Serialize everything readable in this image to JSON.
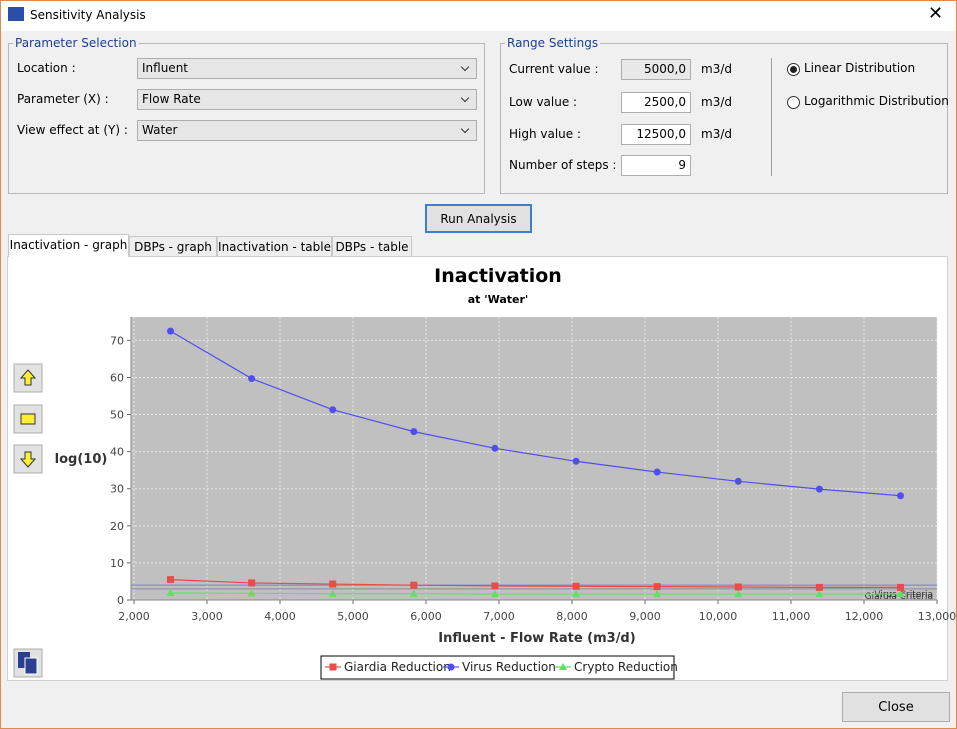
{
  "window": {
    "title": "Sensitivity Analysis"
  },
  "parameter_selection": {
    "title": "Parameter Selection",
    "fields": [
      {
        "label": "Location :",
        "value": "Influent"
      },
      {
        "label": "Parameter (X) :",
        "value": "Flow Rate"
      },
      {
        "label": "View effect at (Y) :",
        "value": "Water"
      }
    ]
  },
  "range_settings": {
    "title": "Range Settings",
    "fields": [
      {
        "label": "Current value :",
        "value": "5000,0",
        "unit": "m3/d",
        "enabled": false
      },
      {
        "label": "Low value :",
        "value": "2500,0",
        "unit": "m3/d",
        "enabled": true
      },
      {
        "label": "High value :",
        "value": "12500,0",
        "unit": "m3/d",
        "enabled": true
      },
      {
        "label": "Number of steps :",
        "value": "9",
        "enabled": true
      }
    ],
    "options": [
      {
        "label": "Linear Distribution",
        "selected": true
      },
      {
        "label": "Logarithmic Distribution",
        "selected": false
      }
    ]
  },
  "run_button": "Run Analysis",
  "tabs": [
    "Inactivation - graph",
    "DBPs - graph",
    "Inactivation - table",
    "DBPs - table"
  ],
  "active_tab": 0,
  "close_button": "Close",
  "chart_data": {
    "type": "line",
    "title": "Inactivation",
    "subtitle": "at 'Water'",
    "x_label": "Influent - Flow Rate (m3/d)",
    "y_label": "log(10)",
    "x": [
      2500,
      3611.1,
      4722.2,
      5833.3,
      6944.4,
      8055.6,
      9166.7,
      10277.8,
      11388.9,
      12500
    ],
    "series": [
      {
        "name": "Giardia Reduction",
        "color": "#e84c4c",
        "marker": "square",
        "values": [
          5.5,
          4.6,
          4.3,
          4.0,
          3.8,
          3.7,
          3.6,
          3.5,
          3.4,
          3.4
        ]
      },
      {
        "name": "Virus Reduction",
        "color": "#4f4ff0",
        "marker": "circle",
        "values": [
          72.5,
          59.7,
          51.3,
          45.4,
          40.9,
          37.4,
          34.5,
          32.0,
          29.9,
          28.1
        ]
      },
      {
        "name": "Crypto Reduction",
        "color": "#5fe05f",
        "marker": "triangle",
        "values": [
          1.9,
          1.8,
          1.7,
          1.7,
          1.6,
          1.6,
          1.6,
          1.6,
          1.6,
          1.6
        ]
      }
    ],
    "criteria": [
      {
        "name": "Virus Criteria",
        "color": "#7a7adc",
        "value": 4.0
      },
      {
        "name": "Giardia Criteria",
        "color": "#8c8c8c",
        "value": 3.0
      }
    ],
    "xlim": [
      2000,
      13000
    ],
    "ylim": [
      0,
      76.3
    ],
    "xticks": [
      {
        "value": 2000,
        "label": "2,000"
      },
      {
        "value": 3000,
        "label": "3,000"
      },
      {
        "value": 4000,
        "label": "4,000"
      },
      {
        "value": 5000,
        "label": "5,000"
      },
      {
        "value": 6000,
        "label": "6,000"
      },
      {
        "value": 7000,
        "label": "7,000"
      },
      {
        "value": 8000,
        "label": "8,000"
      },
      {
        "value": 9000,
        "label": "9,000"
      },
      {
        "value": 10000,
        "label": "10,000"
      },
      {
        "value": 11000,
        "label": "11,000"
      },
      {
        "value": 12000,
        "label": "12,000"
      },
      {
        "value": 13000,
        "label": "13,000"
      }
    ],
    "yticks": [
      0,
      10,
      20,
      30,
      40,
      50,
      60,
      70
    ],
    "grid": true,
    "plot_background": "#c0c0c0",
    "legend": "bottom"
  }
}
